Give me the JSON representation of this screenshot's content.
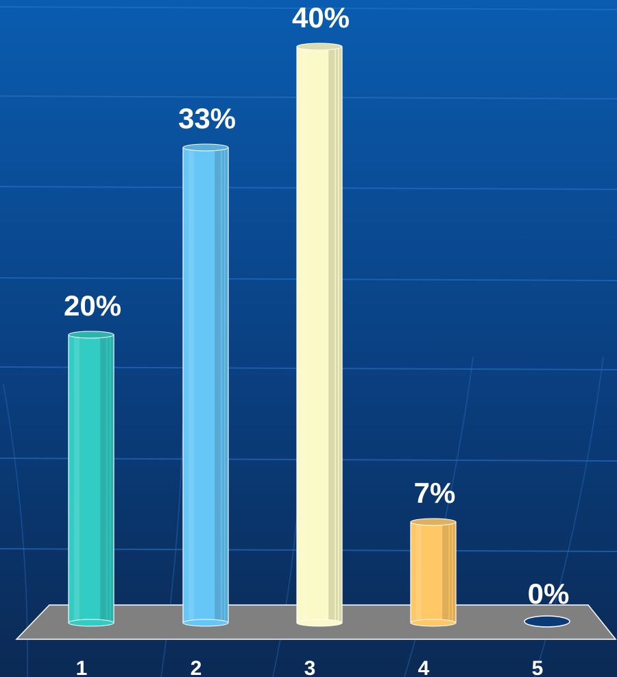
{
  "chart_data": {
    "type": "bar",
    "style": "3d-cylinder",
    "categories": [
      "1",
      "2",
      "3",
      "4",
      "5"
    ],
    "values": [
      20,
      33,
      40,
      7,
      0
    ],
    "data_labels": [
      "20%",
      "33%",
      "40%",
      "7%",
      "0%"
    ],
    "value_unit": "%",
    "ylim": [
      0,
      40
    ],
    "grid": false,
    "legend": "none",
    "colors": {
      "bars": [
        "#33ccc4",
        "#66c6f5",
        "#fafac8",
        "#ffc866",
        "#0a3a78"
      ],
      "floor": "#808080",
      "background_top": "#0a5cb0",
      "background_bottom": "#0b2a55",
      "label_text": "#ffffff"
    }
  }
}
